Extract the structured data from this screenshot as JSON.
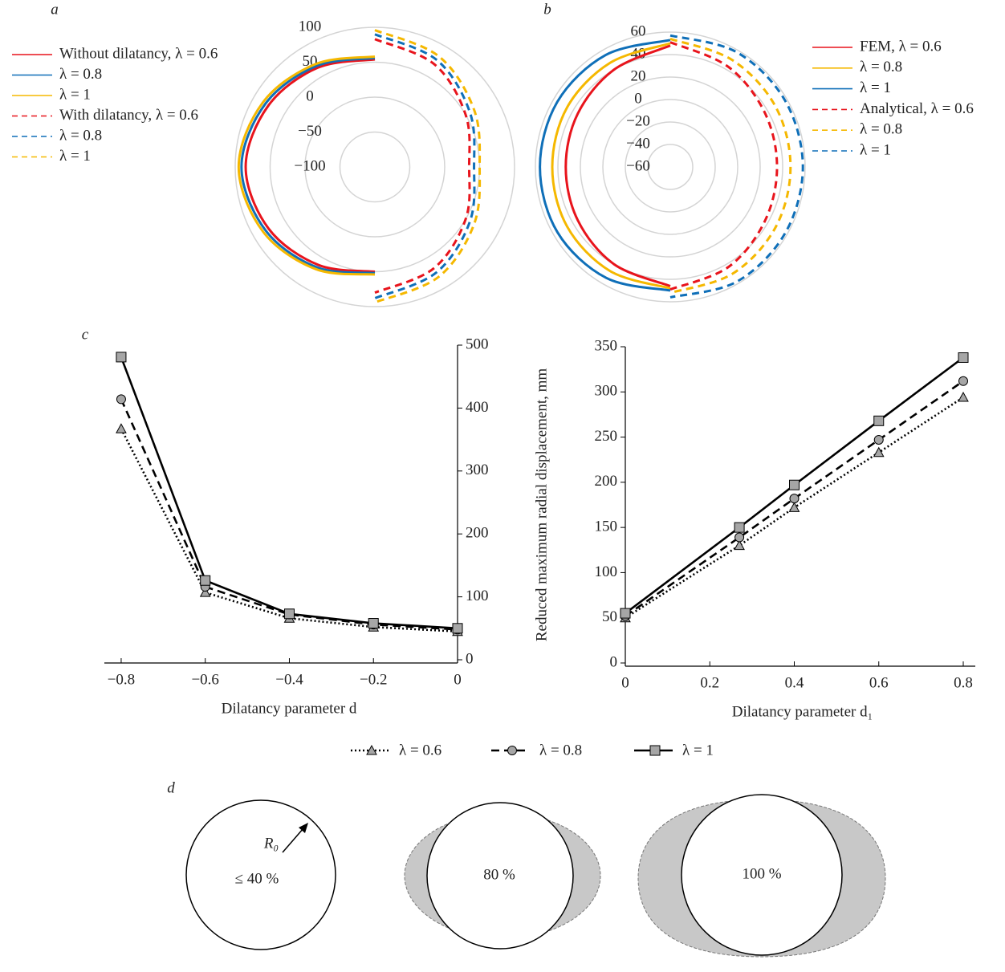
{
  "chart_data": [
    {
      "type": "polar",
      "panel": "a",
      "theta": [
        0,
        30,
        60,
        90,
        120,
        150,
        180,
        210,
        240,
        270,
        300,
        330,
        360
      ],
      "rlim": [
        -100,
        100
      ],
      "rticks": [
        100,
        50,
        0,
        {
          "value": -50,
          "label": "−50"
        },
        {
          "value": -100,
          "label": "−100"
        }
      ],
      "series": [
        {
          "name": "Without dilatancy, λ = 0.6",
          "color": "#e8141c",
          "dash": false,
          "values": [
            null,
            null,
            null,
            null,
            null,
            null,
            50,
            62,
            76,
            85,
            76,
            64,
            54
          ]
        },
        {
          "name": "λ = 0.8",
          "color": "#0f6fb8",
          "dash": false,
          "values": [
            null,
            null,
            null,
            null,
            null,
            null,
            52,
            66,
            81,
            91,
            81,
            67,
            56
          ]
        },
        {
          "name": "λ = 1",
          "color": "#f5b800",
          "dash": false,
          "values": [
            null,
            null,
            null,
            null,
            null,
            null,
            54,
            69,
            85,
            95,
            85,
            70,
            58
          ]
        },
        {
          "name": "With dilatancy, λ = 0.6",
          "color": "#e8141c",
          "dash": true,
          "values": [
            83,
            70,
            50,
            35,
            50,
            68,
            80,
            null,
            null,
            null,
            null,
            null,
            null
          ]
        },
        {
          "name": "λ = 0.8",
          "color": "#0f6fb8",
          "dash": true,
          "values": [
            90,
            77,
            57,
            42,
            57,
            75,
            88,
            null,
            null,
            null,
            null,
            null,
            null
          ]
        },
        {
          "name": "λ = 1",
          "color": "#f5b800",
          "dash": true,
          "values": [
            96,
            83,
            64,
            50,
            64,
            82,
            94,
            null,
            null,
            null,
            null,
            null,
            null
          ]
        }
      ]
    },
    {
      "type": "polar",
      "panel": "b",
      "theta": [
        0,
        30,
        60,
        90,
        120,
        150,
        180,
        210,
        240,
        270,
        300,
        330,
        360
      ],
      "rlim": [
        -60,
        60
      ],
      "rticks": [
        60,
        40,
        20,
        0,
        {
          "value": -20,
          "label": "−20"
        },
        {
          "value": -40,
          "label": "−40"
        },
        {
          "value": -60,
          "label": "−60"
        }
      ],
      "series": [
        {
          "name": "FEM, λ = 0.6",
          "color": "#e8141c",
          "dash": false,
          "values": [
            null,
            null,
            null,
            null,
            null,
            null,
            46,
            40,
            35,
            33,
            35,
            40,
            48
          ]
        },
        {
          "name": "λ = 0.8",
          "color": "#f5b800",
          "dash": false,
          "values": [
            null,
            null,
            null,
            null,
            null,
            null,
            48,
            47,
            46,
            45,
            46,
            47,
            50
          ]
        },
        {
          "name": "λ = 1",
          "color": "#0f6fb8",
          "dash": false,
          "values": [
            null,
            null,
            null,
            null,
            null,
            null,
            50,
            54,
            56,
            56,
            56,
            55,
            53
          ]
        },
        {
          "name": "Analytical, λ = 0.6",
          "color": "#e8141c",
          "dash": true,
          "values": [
            51,
            43,
            37,
            35,
            37,
            43,
            49,
            null,
            null,
            null,
            null,
            null,
            null
          ]
        },
        {
          "name": "λ = 0.8",
          "color": "#f5b800",
          "dash": true,
          "values": [
            54,
            50,
            48,
            47,
            48,
            50,
            52,
            null,
            null,
            null,
            null,
            null,
            null
          ]
        },
        {
          "name": "λ = 1",
          "color": "#0f6fb8",
          "dash": true,
          "values": [
            57,
            58,
            58,
            58,
            58,
            58,
            56,
            null,
            null,
            null,
            null,
            null,
            null
          ]
        }
      ]
    },
    {
      "type": "line",
      "panel": "c",
      "x_label": "Dilatancy parameter d",
      "y_axis_side": "right",
      "x": [
        -0.8,
        -0.6,
        -0.4,
        -0.2,
        0
      ],
      "xlim": [
        -0.84,
        0
      ],
      "xticks": [
        {
          "value": -0.8,
          "label": "−0.8"
        },
        {
          "value": -0.6,
          "label": "−0.6"
        },
        {
          "value": -0.4,
          "label": "−0.4"
        },
        {
          "value": -0.2,
          "label": "−0.2"
        },
        0
      ],
      "ylim": [
        0,
        500
      ],
      "yticks": [
        0,
        100,
        200,
        300,
        400,
        500
      ],
      "series": [
        {
          "color": "#000000",
          "marker": "triangle",
          "line": "dotted",
          "values": [
            367,
            107,
            66,
            52,
            45
          ]
        },
        {
          "color": "#000000",
          "marker": "circle",
          "line": "dashed",
          "values": [
            414,
            116,
            72,
            56,
            48
          ]
        },
        {
          "color": "#000000",
          "marker": "square",
          "line": "solid",
          "values": [
            481,
            126,
            73,
            58,
            50
          ]
        }
      ]
    },
    {
      "type": "line",
      "x_label": "Dilatancy parameter d₁",
      "y_label": "Reduced maximum radial displacement, mm",
      "y_axis_side": "left",
      "x": [
        0,
        0.27,
        0.4,
        0.6,
        0.8
      ],
      "xlim": [
        0,
        0.8
      ],
      "xticks": [
        0,
        0.2,
        0.4,
        0.6,
        0.8
      ],
      "ylim": [
        0,
        350
      ],
      "yticks": [
        0,
        50,
        100,
        150,
        200,
        250,
        300,
        350
      ],
      "series": [
        {
          "name": "λ = 0.6",
          "color": "#000000",
          "marker": "triangle",
          "line": "dotted",
          "values": [
            50,
            130,
            172,
            233,
            294
          ]
        },
        {
          "name": "λ = 0.8",
          "color": "#000000",
          "marker": "circle",
          "line": "dashed",
          "values": [
            52,
            139,
            182,
            247,
            312
          ]
        },
        {
          "name": "λ = 1",
          "color": "#000000",
          "marker": "square",
          "line": "solid",
          "values": [
            55,
            150,
            197,
            268,
            338
          ]
        }
      ]
    }
  ],
  "diagram": {
    "panel": "d",
    "radius_label": "R₀",
    "items": [
      "≤ 40 %",
      "80 %",
      "100 %"
    ]
  }
}
